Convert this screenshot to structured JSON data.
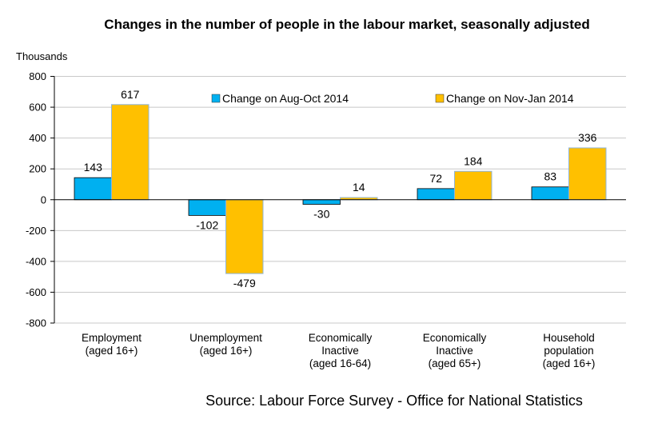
{
  "chart_data": {
    "type": "bar",
    "title": "Changes in the number of people in the labour market, seasonally adjusted",
    "ylabel": "Thousands",
    "xlabel": "",
    "ylim": [
      -800,
      800
    ],
    "yticks": [
      800,
      600,
      400,
      200,
      0,
      -200,
      -400,
      -600,
      -800
    ],
    "grid": true,
    "legend_position": "top",
    "categories": [
      [
        "Employment",
        "(aged 16+)"
      ],
      [
        "Unemployment",
        "(aged 16+)"
      ],
      [
        "Economically",
        "Inactive",
        "(aged 16-64)"
      ],
      [
        "Economically",
        "Inactive",
        "(aged 65+)"
      ],
      [
        "Household",
        "population",
        "(aged 16+)"
      ]
    ],
    "series": [
      {
        "name": "Change on Aug-Oct 2014",
        "color": "#00B0F0",
        "values": [
          143,
          -102,
          -30,
          72,
          83
        ]
      },
      {
        "name": "Change on Nov-Jan 2014",
        "color": "#FFC000",
        "values": [
          617,
          -479,
          14,
          184,
          336
        ]
      }
    ],
    "source": "Source: Labour Force Survey - Office for National Statistics"
  }
}
